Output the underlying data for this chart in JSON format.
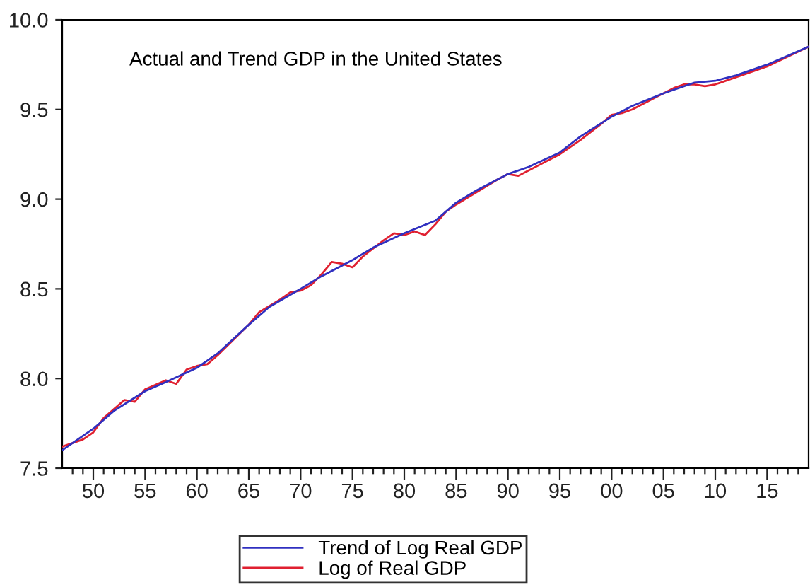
{
  "chart_data": {
    "type": "line",
    "annotations": [
      "Actual and Trend GDP in the United States"
    ],
    "xlim": [
      1947,
      2019
    ],
    "ylim": [
      7.5,
      10.0
    ],
    "yticks": [
      {
        "value": 7.5,
        "label": "7.5"
      },
      {
        "value": 8.0,
        "label": "8.0"
      },
      {
        "value": 8.5,
        "label": "8.5"
      },
      {
        "value": 9.0,
        "label": "9.0"
      },
      {
        "value": 9.5,
        "label": "9.5"
      },
      {
        "value": 10.0,
        "label": "10.0"
      }
    ],
    "xticks": [
      {
        "value": 1948,
        "label": null
      },
      {
        "value": 1949,
        "label": null
      },
      {
        "value": 1950,
        "label": "50"
      },
      {
        "value": 1951,
        "label": null
      },
      {
        "value": 1952,
        "label": null
      },
      {
        "value": 1953,
        "label": null
      },
      {
        "value": 1954,
        "label": null
      },
      {
        "value": 1955,
        "label": "55"
      },
      {
        "value": 1956,
        "label": null
      },
      {
        "value": 1957,
        "label": null
      },
      {
        "value": 1958,
        "label": null
      },
      {
        "value": 1959,
        "label": null
      },
      {
        "value": 1960,
        "label": "60"
      },
      {
        "value": 1961,
        "label": null
      },
      {
        "value": 1962,
        "label": null
      },
      {
        "value": 1963,
        "label": null
      },
      {
        "value": 1964,
        "label": null
      },
      {
        "value": 1965,
        "label": "65"
      },
      {
        "value": 1966,
        "label": null
      },
      {
        "value": 1967,
        "label": null
      },
      {
        "value": 1968,
        "label": null
      },
      {
        "value": 1969,
        "label": null
      },
      {
        "value": 1970,
        "label": "70"
      },
      {
        "value": 1971,
        "label": null
      },
      {
        "value": 1972,
        "label": null
      },
      {
        "value": 1973,
        "label": null
      },
      {
        "value": 1974,
        "label": null
      },
      {
        "value": 1975,
        "label": "75"
      },
      {
        "value": 1976,
        "label": null
      },
      {
        "value": 1977,
        "label": null
      },
      {
        "value": 1978,
        "label": null
      },
      {
        "value": 1979,
        "label": null
      },
      {
        "value": 1980,
        "label": "80"
      },
      {
        "value": 1981,
        "label": null
      },
      {
        "value": 1982,
        "label": null
      },
      {
        "value": 1983,
        "label": null
      },
      {
        "value": 1984,
        "label": null
      },
      {
        "value": 1985,
        "label": "85"
      },
      {
        "value": 1986,
        "label": null
      },
      {
        "value": 1987,
        "label": null
      },
      {
        "value": 1988,
        "label": null
      },
      {
        "value": 1989,
        "label": null
      },
      {
        "value": 1990,
        "label": "90"
      },
      {
        "value": 1991,
        "label": null
      },
      {
        "value": 1992,
        "label": null
      },
      {
        "value": 1993,
        "label": null
      },
      {
        "value": 1994,
        "label": null
      },
      {
        "value": 1995,
        "label": "95"
      },
      {
        "value": 1996,
        "label": null
      },
      {
        "value": 1997,
        "label": null
      },
      {
        "value": 1998,
        "label": null
      },
      {
        "value": 1999,
        "label": null
      },
      {
        "value": 2000,
        "label": "00"
      },
      {
        "value": 2001,
        "label": null
      },
      {
        "value": 2002,
        "label": null
      },
      {
        "value": 2003,
        "label": null
      },
      {
        "value": 2004,
        "label": null
      },
      {
        "value": 2005,
        "label": "05"
      },
      {
        "value": 2006,
        "label": null
      },
      {
        "value": 2007,
        "label": null
      },
      {
        "value": 2008,
        "label": null
      },
      {
        "value": 2009,
        "label": null
      },
      {
        "value": 2010,
        "label": "10"
      },
      {
        "value": 2011,
        "label": null
      },
      {
        "value": 2012,
        "label": null
      },
      {
        "value": 2013,
        "label": null
      },
      {
        "value": 2014,
        "label": null
      },
      {
        "value": 2015,
        "label": "15"
      },
      {
        "value": 2016,
        "label": null
      },
      {
        "value": 2017,
        "label": null
      },
      {
        "value": 2018,
        "label": null
      }
    ],
    "grid": false,
    "legend": "bottom",
    "line_style": "solid",
    "marker": "none",
    "series": [
      {
        "name": "Trend of Log Real GDP",
        "color": "#3030c0",
        "x": [
          1947,
          1950,
          1952,
          1955,
          1957,
          1960,
          1962,
          1965,
          1967,
          1970,
          1972,
          1975,
          1977,
          1980,
          1983,
          1985,
          1987,
          1990,
          1992,
          1995,
          1997,
          2000,
          2002,
          2005,
          2008,
          2010,
          2012,
          2015,
          2017,
          2019
        ],
        "values": [
          7.6,
          7.72,
          7.82,
          7.93,
          7.98,
          8.06,
          8.14,
          8.3,
          8.4,
          8.5,
          8.57,
          8.66,
          8.73,
          8.81,
          8.88,
          8.98,
          9.05,
          9.14,
          9.18,
          9.26,
          9.35,
          9.46,
          9.52,
          9.59,
          9.65,
          9.66,
          9.69,
          9.75,
          9.8,
          9.85
        ]
      },
      {
        "name": "Log of Real GDP",
        "color": "#e02030",
        "x": [
          1947,
          1949,
          1950,
          1951,
          1953,
          1954,
          1955,
          1957,
          1958,
          1959,
          1960,
          1961,
          1962,
          1965,
          1966,
          1968,
          1969,
          1970,
          1971,
          1972,
          1973,
          1974,
          1975,
          1976,
          1978,
          1979,
          1980,
          1981,
          1982,
          1983,
          1984,
          1985,
          1987,
          1989,
          1990,
          1991,
          1992,
          1995,
          1997,
          1999,
          2000,
          2001,
          2002,
          2004,
          2006,
          2007,
          2008,
          2009,
          2010,
          2012,
          2015,
          2019
        ],
        "values": [
          7.62,
          7.66,
          7.7,
          7.78,
          7.88,
          7.87,
          7.94,
          7.99,
          7.97,
          8.05,
          8.07,
          8.08,
          8.13,
          8.3,
          8.37,
          8.44,
          8.48,
          8.49,
          8.52,
          8.58,
          8.65,
          8.64,
          8.62,
          8.68,
          8.77,
          8.81,
          8.8,
          8.82,
          8.8,
          8.86,
          8.93,
          8.97,
          9.04,
          9.11,
          9.14,
          9.13,
          9.16,
          9.25,
          9.33,
          9.42,
          9.47,
          9.48,
          9.5,
          9.56,
          9.62,
          9.64,
          9.64,
          9.63,
          9.64,
          9.68,
          9.74,
          9.85
        ]
      }
    ]
  }
}
